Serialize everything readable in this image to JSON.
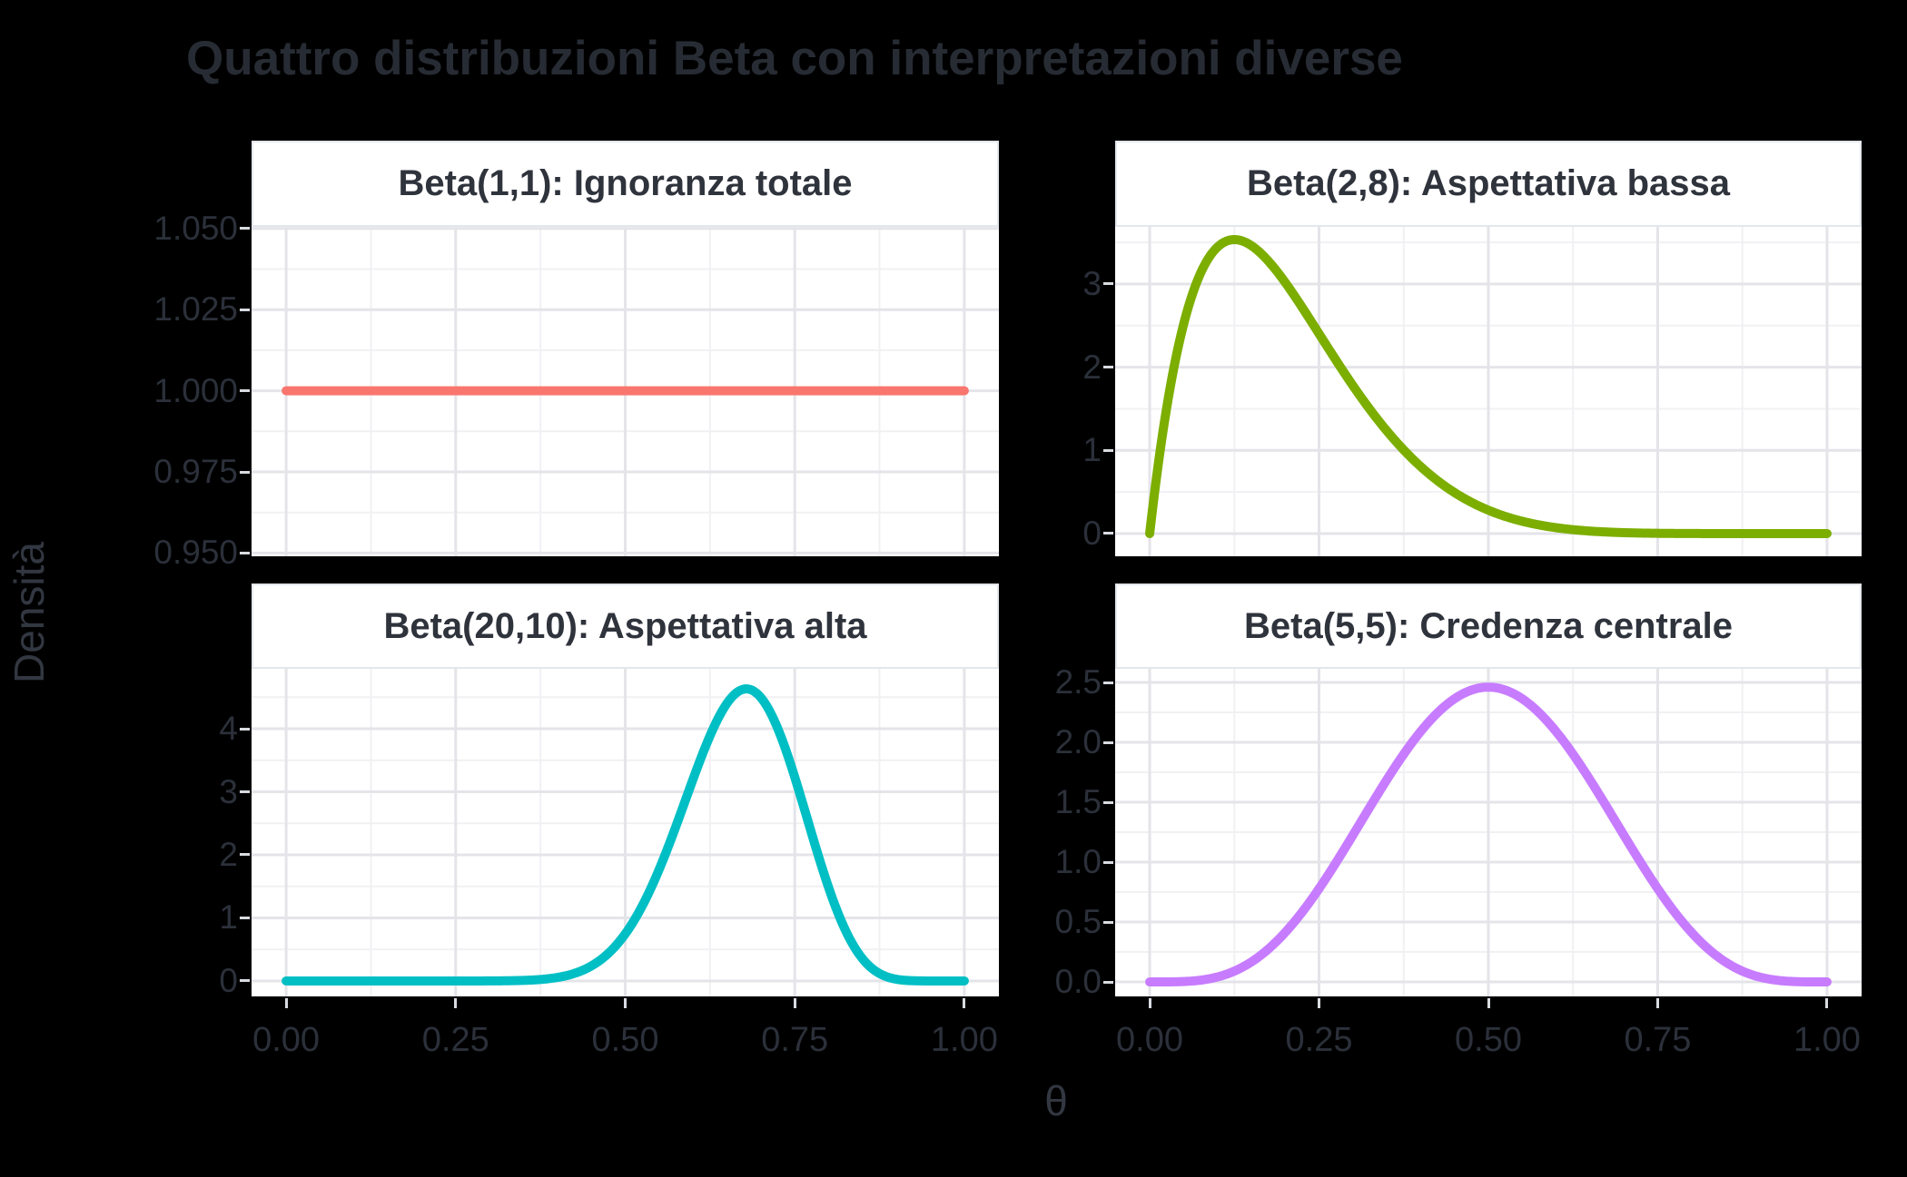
{
  "title": "Quattro distribuzioni Beta con interpretazioni diverse",
  "axis": {
    "x_label": "θ",
    "y_label": "Densità",
    "x_ticks": {
      "values": [
        0,
        0.25,
        0.5,
        0.75,
        1.0
      ],
      "labels": [
        "0.00",
        "0.25",
        "0.50",
        "0.75",
        "1.00"
      ]
    },
    "x_minor": [
      0.125,
      0.375,
      0.625,
      0.875
    ],
    "xlim": [
      -0.051,
      1.051
    ]
  },
  "style": {
    "background": "#000000",
    "panel_fill": "#ffffff",
    "grid_major": "#e4e4e9",
    "grid_minor": "#f1f1f4",
    "strip_fill": "#ffffff",
    "strip_border": "#e3e6eb",
    "text_dark": "#2b303a"
  },
  "chart_data": [
    {
      "type": "line",
      "position": "top-left",
      "title": "Beta(1,1): Ignoranza totale",
      "distribution": "Beta",
      "params": {
        "alpha": 1,
        "beta": 1
      },
      "color": "#F8766D",
      "xlim": [
        -0.051,
        1.051
      ],
      "ylim": [
        0.949,
        1.0505
      ],
      "x": [
        0,
        0.05,
        0.1,
        0.15,
        0.2,
        0.25,
        0.3,
        0.35,
        0.4,
        0.45,
        0.5,
        0.55,
        0.6,
        0.65,
        0.7,
        0.75,
        0.8,
        0.85,
        0.9,
        0.95,
        1
      ],
      "y": [
        1,
        1,
        1,
        1,
        1,
        1,
        1,
        1,
        1,
        1,
        1,
        1,
        1,
        1,
        1,
        1,
        1,
        1,
        1,
        1,
        1
      ],
      "y_ticks": {
        "values": [
          0.95,
          0.975,
          1.0,
          1.025,
          1.05
        ],
        "labels": [
          "0.950",
          "0.975",
          "1.000",
          "1.025",
          "1.050"
        ]
      },
      "y_minor": [
        0.9625,
        0.9875,
        1.0125,
        1.0375
      ]
    },
    {
      "type": "line",
      "position": "top-right",
      "title": "Beta(2,8): Aspettativa bassa",
      "distribution": "Beta",
      "params": {
        "alpha": 2,
        "beta": 8
      },
      "color": "#7CAE00",
      "xlim": [
        -0.051,
        1.051
      ],
      "ylim": [
        -0.273,
        3.687
      ],
      "x": [
        0,
        0.05,
        0.1,
        0.15,
        0.2,
        0.25,
        0.3,
        0.35,
        0.4,
        0.45,
        0.5,
        0.55,
        0.6,
        0.65,
        0.7,
        0.75,
        0.8,
        0.85,
        0.9,
        0.95,
        1
      ],
      "y": [
        0,
        2.514,
        3.444,
        3.462,
        3.02,
        2.403,
        1.779,
        1.235,
        0.806,
        0.493,
        0.281,
        0.148,
        0.071,
        0.03,
        0.011,
        0.003,
        0.001,
        0,
        0,
        0,
        0
      ],
      "y_ticks": {
        "values": [
          0,
          1,
          2,
          3
        ],
        "labels": [
          "0",
          "1",
          "2",
          "3"
        ]
      },
      "y_minor": [
        0.5,
        1.5,
        2.5,
        3.5
      ]
    },
    {
      "type": "line",
      "position": "bottom-left",
      "title": "Beta(20,10): Aspettativa alta",
      "distribution": "Beta",
      "params": {
        "alpha": 20,
        "beta": 10
      },
      "color": "#00BFC4",
      "xlim": [
        -0.051,
        1.051
      ],
      "ylim": [
        -0.245,
        4.95
      ],
      "x": [
        0,
        0.05,
        0.1,
        0.15,
        0.2,
        0.25,
        0.3,
        0.35,
        0.4,
        0.45,
        0.5,
        0.55,
        0.6,
        0.65,
        0.7,
        0.75,
        0.8,
        0.85,
        0.9,
        0.95,
        1
      ],
      "y": [
        0,
        0,
        0,
        0,
        0,
        0,
        0.001,
        0.009,
        0.056,
        0.239,
        0.748,
        1.774,
        3.216,
        4.424,
        4.513,
        3.245,
        1.486,
        0.353,
        0.027,
        0,
        0
      ],
      "y_ticks": {
        "values": [
          0,
          1,
          2,
          3,
          4
        ],
        "labels": [
          "0",
          "1",
          "2",
          "3",
          "4"
        ]
      },
      "y_minor": [
        0.5,
        1.5,
        2.5,
        3.5,
        4.5
      ]
    },
    {
      "type": "line",
      "position": "bottom-right",
      "title": "Beta(5,5): Credenza centrale",
      "distribution": "Beta",
      "params": {
        "alpha": 5,
        "beta": 5
      },
      "color": "#C77CFF",
      "xlim": [
        -0.051,
        1.051
      ],
      "ylim": [
        -0.121,
        2.614
      ],
      "x": [
        0,
        0.05,
        0.1,
        0.15,
        0.2,
        0.25,
        0.3,
        0.35,
        0.4,
        0.45,
        0.5,
        0.55,
        0.6,
        0.65,
        0.7,
        0.75,
        0.8,
        0.85,
        0.9,
        0.95,
        1
      ],
      "y": [
        0,
        0.003,
        0.041,
        0.166,
        0.413,
        0.779,
        1.225,
        1.688,
        2.09,
        2.364,
        2.461,
        2.364,
        2.09,
        1.688,
        1.225,
        0.779,
        0.413,
        0.166,
        0.041,
        0.003,
        0
      ],
      "y_ticks": {
        "values": [
          0.0,
          0.5,
          1.0,
          1.5,
          2.0,
          2.5
        ],
        "labels": [
          "0.0",
          "0.5",
          "1.0",
          "1.5",
          "2.0",
          "2.5"
        ]
      },
      "y_minor": [
        0.25,
        0.75,
        1.25,
        1.75,
        2.25
      ]
    }
  ]
}
